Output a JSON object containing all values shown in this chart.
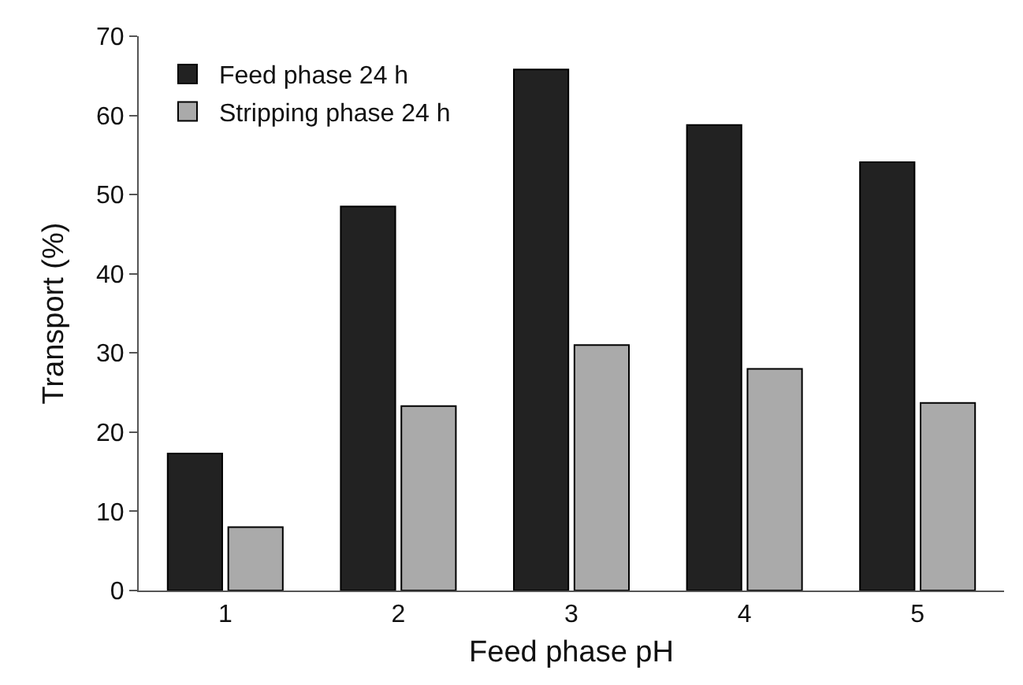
{
  "chart_data": {
    "type": "bar",
    "xlabel": "Feed phase pH",
    "ylabel": "Transport (%)",
    "categories": [
      "1",
      "2",
      "3",
      "4",
      "5"
    ],
    "series": [
      {
        "name": "Feed phase 24 h",
        "color": "#222222",
        "values": [
          17.3,
          48.5,
          65.8,
          58.8,
          54.1
        ]
      },
      {
        "name": "Stripping phase 24 h",
        "color": "#aaaaaa",
        "values": [
          8.0,
          23.3,
          31.0,
          28.0,
          23.7
        ]
      }
    ],
    "ylim": [
      0,
      70
    ],
    "yticks": [
      0,
      10,
      20,
      30,
      40,
      50,
      60,
      70
    ],
    "grid": false,
    "legend": "top left"
  }
}
